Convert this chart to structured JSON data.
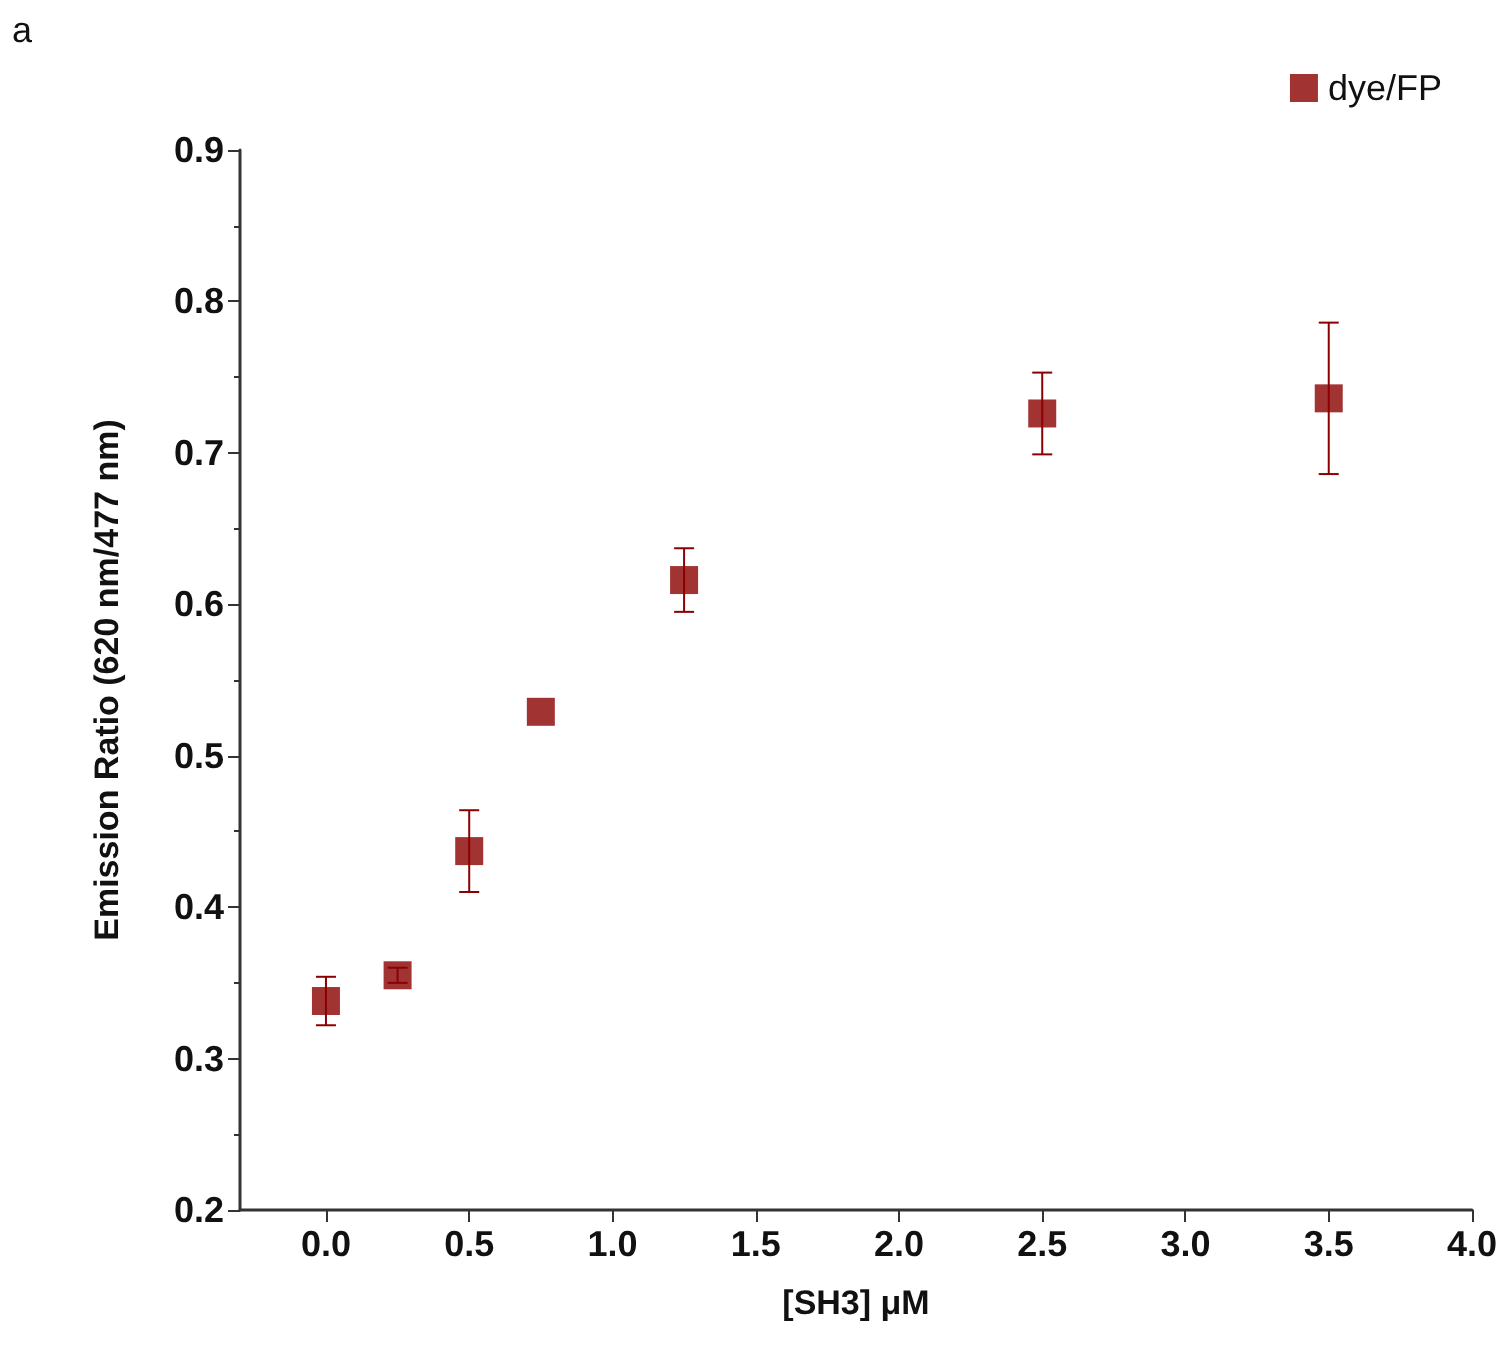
{
  "chart_data": {
    "type": "scatter",
    "xlabel": "[SH3] μM",
    "ylabel": "Emission Ratio (620 nm/477 nm)",
    "annotations": [
      "a"
    ],
    "x": [
      0,
      0.25,
      0.5,
      0.75,
      1.25,
      2.5,
      3.5
    ],
    "series": [
      {
        "name": "dye/FP",
        "color": "#8b0000",
        "values": [
          0.338,
          0.355,
          0.437,
          0.529,
          0.616,
          0.726,
          0.736
        ],
        "errors": [
          0.016,
          0.005,
          0.027,
          null,
          0.021,
          0.027,
          0.05
        ]
      }
    ],
    "xlim": [
      -0.3,
      4.0
    ],
    "xticks": [
      {
        "value": 0,
        "label": "0.0"
      },
      0.5,
      {
        "value": 1,
        "label": "1.0"
      },
      1.5,
      {
        "value": 2,
        "label": "2.0"
      },
      2.5,
      {
        "value": 3,
        "label": "3.0"
      },
      3.5,
      {
        "value": 4,
        "label": "4.0"
      }
    ],
    "ylim": [
      0.2,
      0.9
    ],
    "yticks": [
      0.2,
      0.3,
      0.4,
      0.5,
      0.6,
      0.7,
      0.8,
      0.9
    ],
    "legend": "top right",
    "marker": "square",
    "grid": false
  }
}
